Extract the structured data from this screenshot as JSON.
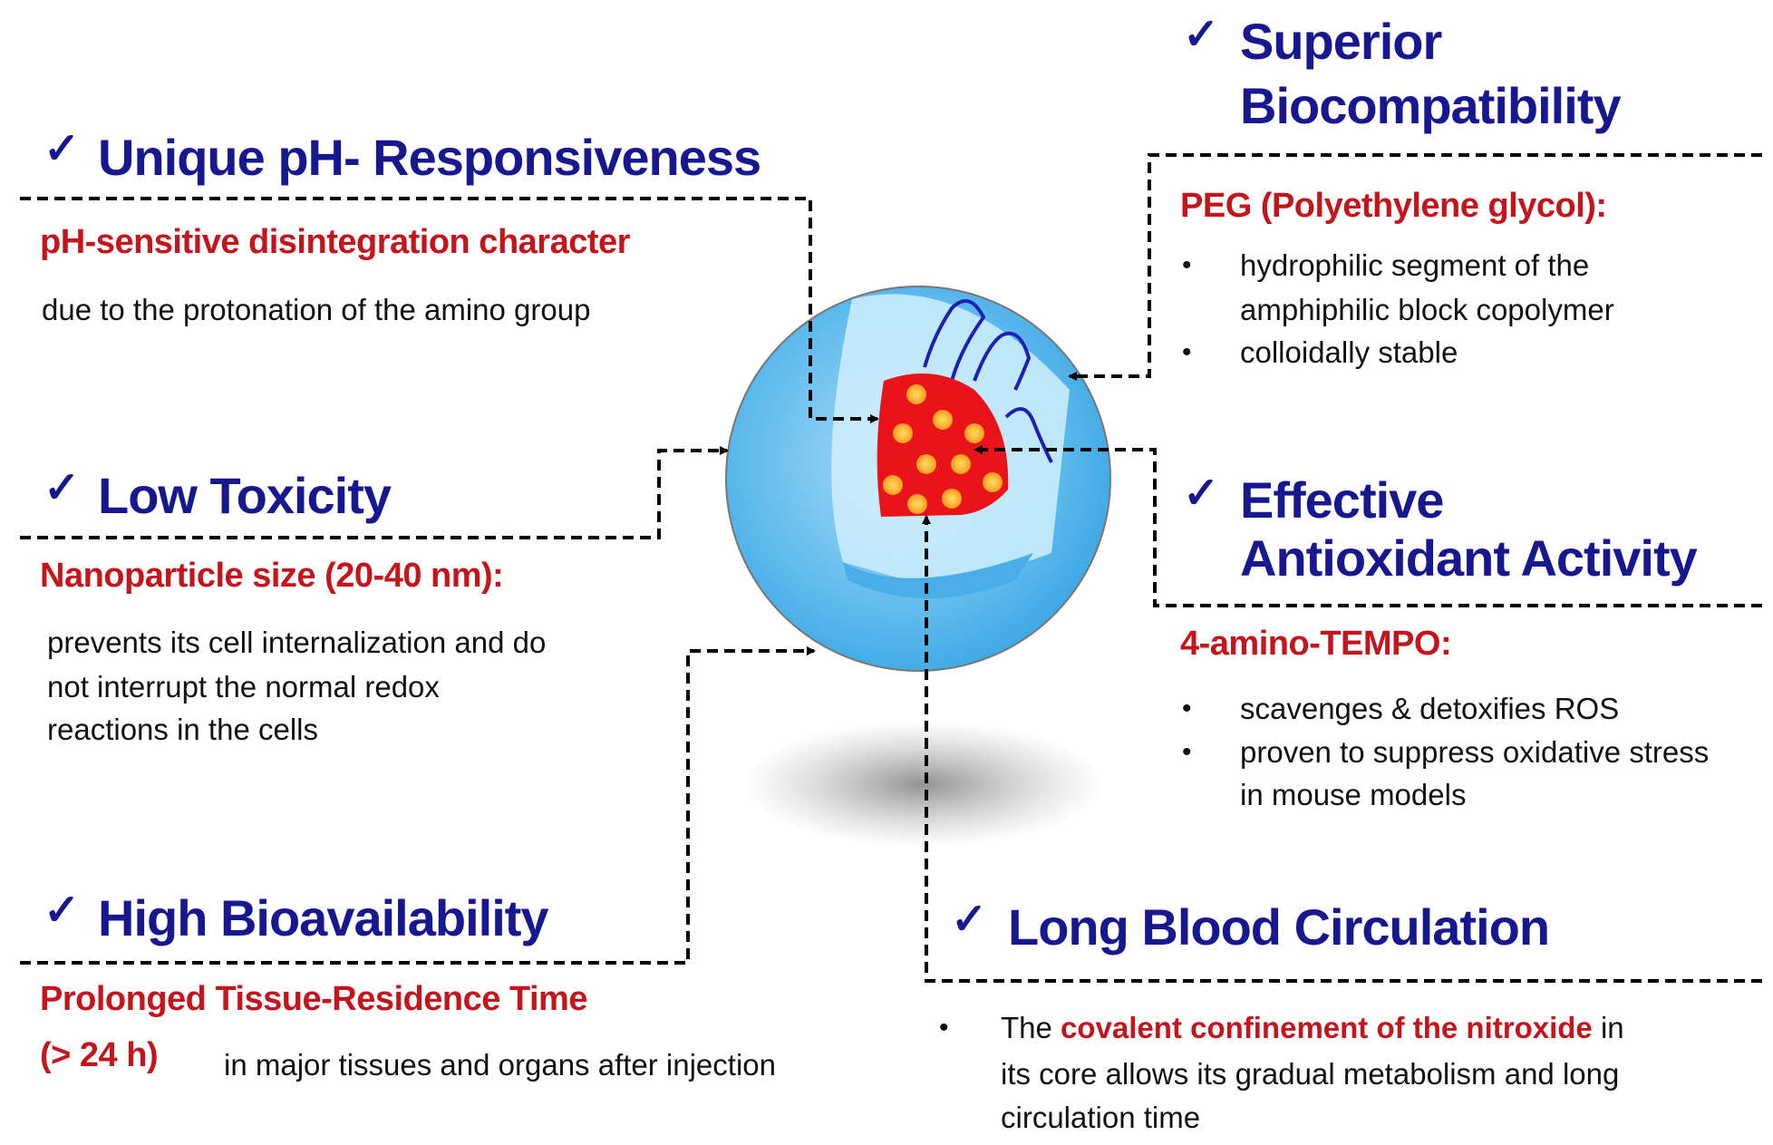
{
  "check_icon": "check-mark",
  "colors": {
    "heading": "#17178f",
    "subheading": "#c4141c",
    "shell": "#5bb8ec",
    "core": "#e8141a",
    "core_dots": "#ffc020",
    "polymer": "#2020b0"
  },
  "ph": {
    "title": "Unique pH- Responsiveness",
    "subtitle": "pH-sensitive disintegration character",
    "text": "due to the protonation of the amino group"
  },
  "toxicity": {
    "title": "Low Toxicity",
    "subtitle": "Nanoparticle size (20-40 nm):",
    "lines": [
      "prevents its cell internalization and do",
      "not interrupt the normal redox",
      "reactions in the cells"
    ]
  },
  "bio": {
    "title": "High Bioavailability",
    "subtitle": "Prolonged  Tissue-Residence  Time",
    "subtitle2": "(>  24  h)",
    "text": "in major tissues and organs after injection"
  },
  "biocompat": {
    "title_line1": "Superior",
    "title_line2": "Biocompatibility",
    "subtitle": "PEG (Polyethylene glycol):",
    "bullets": [
      "hydrophilic segment of the",
      "amphiphilic block copolymer",
      "colloidally stable"
    ],
    "bullet_lines": [
      0,
      0,
      1
    ]
  },
  "antiox": {
    "title_line1": "Effective",
    "title_line2": "Antioxidant Activity",
    "subtitle": "4-amino-TEMPO:",
    "lines": [
      "scavenges & detoxifies ROS",
      "proven to suppress oxidative stress",
      "in mouse models"
    ]
  },
  "circulation": {
    "title": "Long Blood Circulation",
    "text_pre": "The ",
    "text_highlight": "covalent confinement of the nitroxide",
    "text_post": " in",
    "lines": [
      "its core allows its gradual metabolism and long",
      "circulation time"
    ]
  }
}
